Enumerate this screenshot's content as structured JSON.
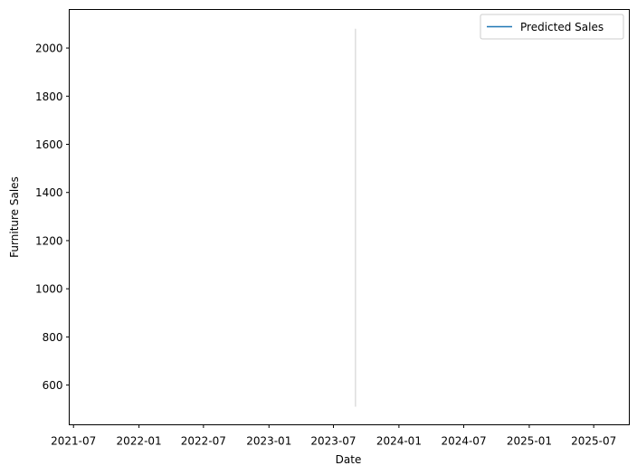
{
  "chart_data": {
    "type": "line",
    "title": "",
    "xlabel": "Date",
    "ylabel": "Furniture Sales",
    "x_ticks": [
      "2021-07",
      "2022-01",
      "2022-07",
      "2023-01",
      "2023-07",
      "2024-01",
      "2024-07",
      "2025-01",
      "2025-07"
    ],
    "y_ticks": [
      600,
      800,
      1000,
      1200,
      1400,
      1600,
      1800,
      2000
    ],
    "xlim": [
      "2021-06-19",
      "2025-10-09"
    ],
    "ylim": [
      435,
      2160
    ],
    "grid": false,
    "legend": {
      "position": "top-right",
      "entries": [
        "Predicted Sales"
      ]
    },
    "series": [
      {
        "name": "Predicted Sales",
        "color": "#1f77b4",
        "x": [],
        "y": []
      }
    ],
    "annotations": [
      {
        "type": "vline",
        "x": "2023-09-01",
        "y_range": [
          510,
          2080
        ],
        "color": "#cccccc"
      }
    ]
  }
}
